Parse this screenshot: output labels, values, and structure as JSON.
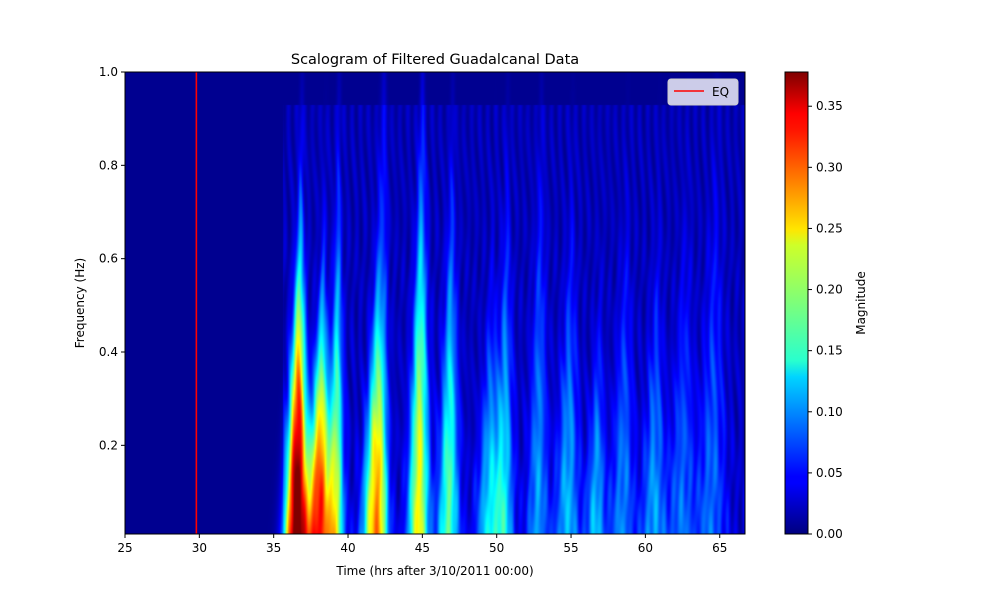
{
  "chart_data": {
    "type": "heatmap",
    "title": "Scalogram of Filtered Guadalcanal Data",
    "xlabel": "Time (hrs after 3/10/2011 00:00)",
    "ylabel": "Frequency (Hz)",
    "xlim": [
      25,
      66.7
    ],
    "ylim": [
      0.01,
      1.0
    ],
    "xticks": [
      25,
      30,
      35,
      40,
      45,
      50,
      55,
      60,
      65
    ],
    "yticks": [
      0.2,
      0.4,
      0.6,
      0.8,
      1.0
    ],
    "colormap": "jet",
    "colorbar": {
      "label": "Magnitude",
      "range": [
        0,
        0.378
      ],
      "ticks": [
        "0.00",
        "0.05",
        "0.10",
        "0.15",
        "0.20",
        "0.25",
        "0.30",
        "0.35"
      ]
    },
    "event_line": {
      "name": "EQ",
      "x": 29.8,
      "color": "#ff0000"
    },
    "legend": {
      "position": "upper right",
      "entries": [
        "EQ"
      ]
    },
    "energy_blobs": [
      {
        "t": 36.6,
        "mag": 0.378,
        "fmax": 0.55,
        "width": 0.55
      },
      {
        "t": 38.1,
        "mag": 0.3,
        "fmax": 0.45,
        "width": 0.6
      },
      {
        "t": 39.2,
        "mag": 0.18,
        "fmax": 0.62,
        "width": 0.4
      },
      {
        "t": 41.8,
        "mag": 0.22,
        "fmax": 0.48,
        "width": 0.55
      },
      {
        "t": 42.3,
        "mag": 0.08,
        "fmax": 0.85,
        "width": 0.35
      },
      {
        "t": 44.8,
        "mag": 0.21,
        "fmax": 0.7,
        "width": 0.5
      },
      {
        "t": 46.8,
        "mag": 0.15,
        "fmax": 0.62,
        "width": 0.5
      },
      {
        "t": 49.5,
        "mag": 0.1,
        "fmax": 0.45,
        "width": 0.6
      },
      {
        "t": 50.5,
        "mag": 0.11,
        "fmax": 0.6,
        "width": 0.5
      },
      {
        "t": 52.8,
        "mag": 0.08,
        "fmax": 0.68,
        "width": 0.5
      },
      {
        "t": 54.8,
        "mag": 0.09,
        "fmax": 0.55,
        "width": 0.6
      },
      {
        "t": 56.7,
        "mag": 0.09,
        "fmax": 0.4,
        "width": 0.5
      },
      {
        "t": 58.5,
        "mag": 0.07,
        "fmax": 0.55,
        "width": 0.6
      },
      {
        "t": 60.6,
        "mag": 0.08,
        "fmax": 0.5,
        "width": 0.6
      },
      {
        "t": 62.5,
        "mag": 0.06,
        "fmax": 0.55,
        "width": 0.7
      },
      {
        "t": 64.5,
        "mag": 0.06,
        "fmax": 0.65,
        "width": 0.7
      }
    ]
  }
}
